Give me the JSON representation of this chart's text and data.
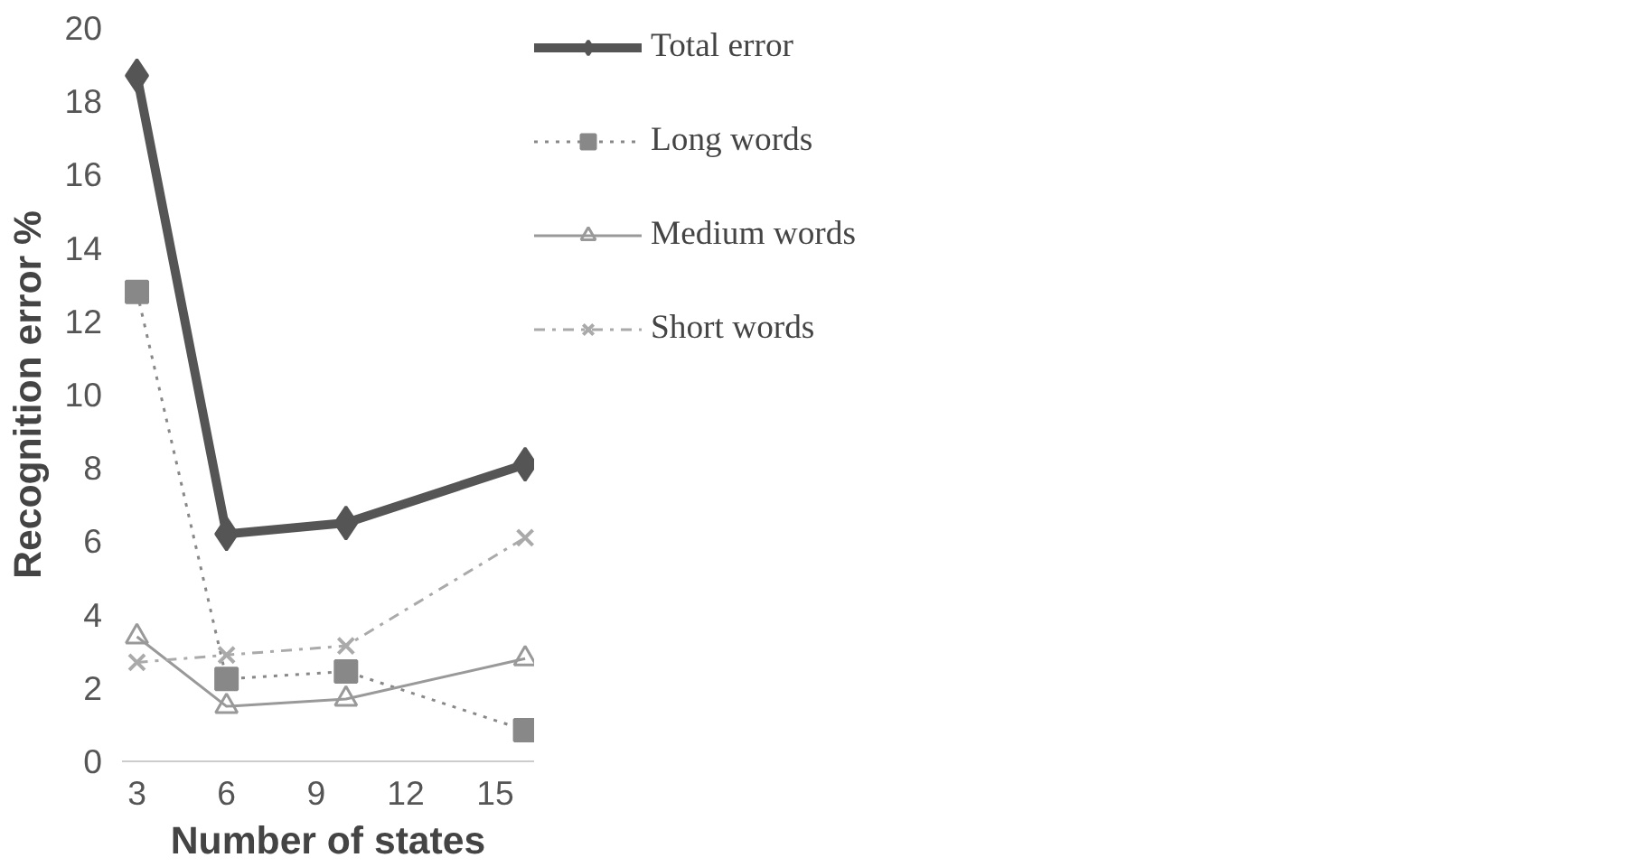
{
  "chart_data": {
    "type": "line",
    "xlabel": "Number of states",
    "ylabel": "Recognition error %",
    "x": [
      3,
      6,
      10,
      16
    ],
    "xlim": [
      2.5,
      16.3
    ],
    "xticks": [
      3,
      6,
      9,
      12,
      15
    ],
    "ylim": [
      0,
      20
    ],
    "yticks": [
      0,
      2,
      4,
      6,
      8,
      10,
      12,
      14,
      16,
      18,
      20
    ],
    "grid": false,
    "legend": "right",
    "series": [
      {
        "name": "Total error",
        "color": "#555555",
        "values": [
          18.7,
          6.2,
          6.5,
          8.1
        ],
        "marker": "diamond",
        "line_style": "solid"
      },
      {
        "name": "Long words",
        "color": "#888888",
        "values": [
          12.8,
          2.25,
          2.45,
          0.85
        ],
        "marker": "square",
        "line_style": "dotted"
      },
      {
        "name": "Medium words",
        "color": "#999999",
        "values": [
          3.4,
          1.5,
          1.7,
          2.8
        ],
        "marker": "triangle",
        "line_style": "solid"
      },
      {
        "name": "Short words",
        "color": "#aaaaaa",
        "values": [
          2.7,
          2.9,
          3.15,
          6.1
        ],
        "marker": "cross",
        "line_style": "dashed"
      }
    ]
  }
}
